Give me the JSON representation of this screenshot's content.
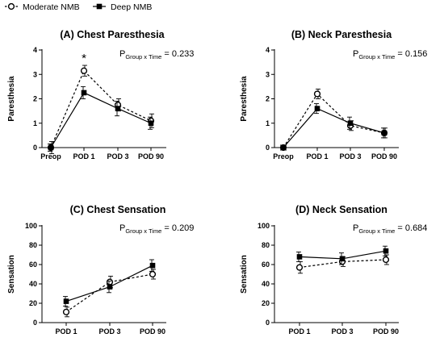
{
  "legend": {
    "position": "top-left",
    "entries": [
      {
        "name": "Moderate NMB",
        "marker": "open-circle",
        "line": "dashed"
      },
      {
        "name": "Deep NMB",
        "marker": "filled-square",
        "line": "solid"
      }
    ]
  },
  "chart_data": [
    {
      "type": "line",
      "title": "(A) Chest Paresthesia",
      "ylabel": "Paresthesia",
      "xlabel": "",
      "categories": [
        "Preop",
        "POD 1",
        "POD 3",
        "POD 90"
      ],
      "ylim": [
        0,
        4
      ],
      "yticks": [
        0,
        1,
        2,
        3,
        4
      ],
      "grid": false,
      "p_value": {
        "main": "P",
        "sub": "Group x Time",
        "rest": " = 0.233"
      },
      "annotations": [
        {
          "text": "*",
          "category": "POD 1"
        }
      ],
      "series": [
        {
          "name": "Moderate NMB",
          "values": [
            0.0,
            3.15,
            1.75,
            1.1
          ],
          "errors": [
            0.25,
            0.22,
            0.25,
            0.28
          ]
        },
        {
          "name": "Deep NMB",
          "values": [
            0.0,
            2.25,
            1.6,
            1.0
          ],
          "errors": [
            0.15,
            0.25,
            0.3,
            0.25
          ]
        }
      ]
    },
    {
      "type": "line",
      "title": "(B) Neck Paresthesia",
      "ylabel": "Paresthesia",
      "xlabel": "",
      "categories": [
        "Preop",
        "POD 1",
        "POD 3",
        "POD 90"
      ],
      "ylim": [
        0,
        4
      ],
      "yticks": [
        0,
        1,
        2,
        3,
        4
      ],
      "grid": false,
      "p_value": {
        "main": "P",
        "sub": "Group x Time",
        "rest": " = 0.156"
      },
      "annotations": [],
      "series": [
        {
          "name": "Moderate NMB",
          "values": [
            0.0,
            2.2,
            0.9,
            0.6
          ],
          "errors": [
            0.1,
            0.2,
            0.2,
            0.2
          ]
        },
        {
          "name": "Deep NMB",
          "values": [
            0.0,
            1.6,
            1.0,
            0.6
          ],
          "errors": [
            0.1,
            0.2,
            0.25,
            0.2
          ]
        }
      ]
    },
    {
      "type": "line",
      "title": "(C) Chest Sensation",
      "ylabel": "Sensation",
      "xlabel": "",
      "categories": [
        "POD 1",
        "POD 3",
        "POD 90"
      ],
      "ylim": [
        0,
        100
      ],
      "yticks": [
        0,
        20,
        40,
        60,
        80,
        100
      ],
      "grid": false,
      "p_value": {
        "main": "P",
        "sub": "Group x Time",
        "rest": " = 0.209"
      },
      "annotations": [],
      "series": [
        {
          "name": "Moderate NMB",
          "values": [
            11,
            42,
            50
          ],
          "errors": [
            5,
            6,
            5
          ]
        },
        {
          "name": "Deep NMB",
          "values": [
            22,
            37,
            59
          ],
          "errors": [
            5,
            6,
            6
          ]
        }
      ]
    },
    {
      "type": "line",
      "title": "(D) Neck Sensation",
      "ylabel": "Sensation",
      "xlabel": "",
      "categories": [
        "POD 1",
        "POD 3",
        "POD 90"
      ],
      "ylim": [
        0,
        100
      ],
      "yticks": [
        0,
        20,
        40,
        60,
        80,
        100
      ],
      "grid": false,
      "p_value": {
        "main": "P",
        "sub": "Group x Time",
        "rest": " = 0.684"
      },
      "annotations": [],
      "series": [
        {
          "name": "Moderate NMB",
          "values": [
            57,
            63,
            65
          ],
          "errors": [
            6,
            5,
            5
          ]
        },
        {
          "name": "Deep NMB",
          "values": [
            68,
            66,
            74
          ],
          "errors": [
            5,
            6,
            5
          ]
        }
      ]
    }
  ]
}
